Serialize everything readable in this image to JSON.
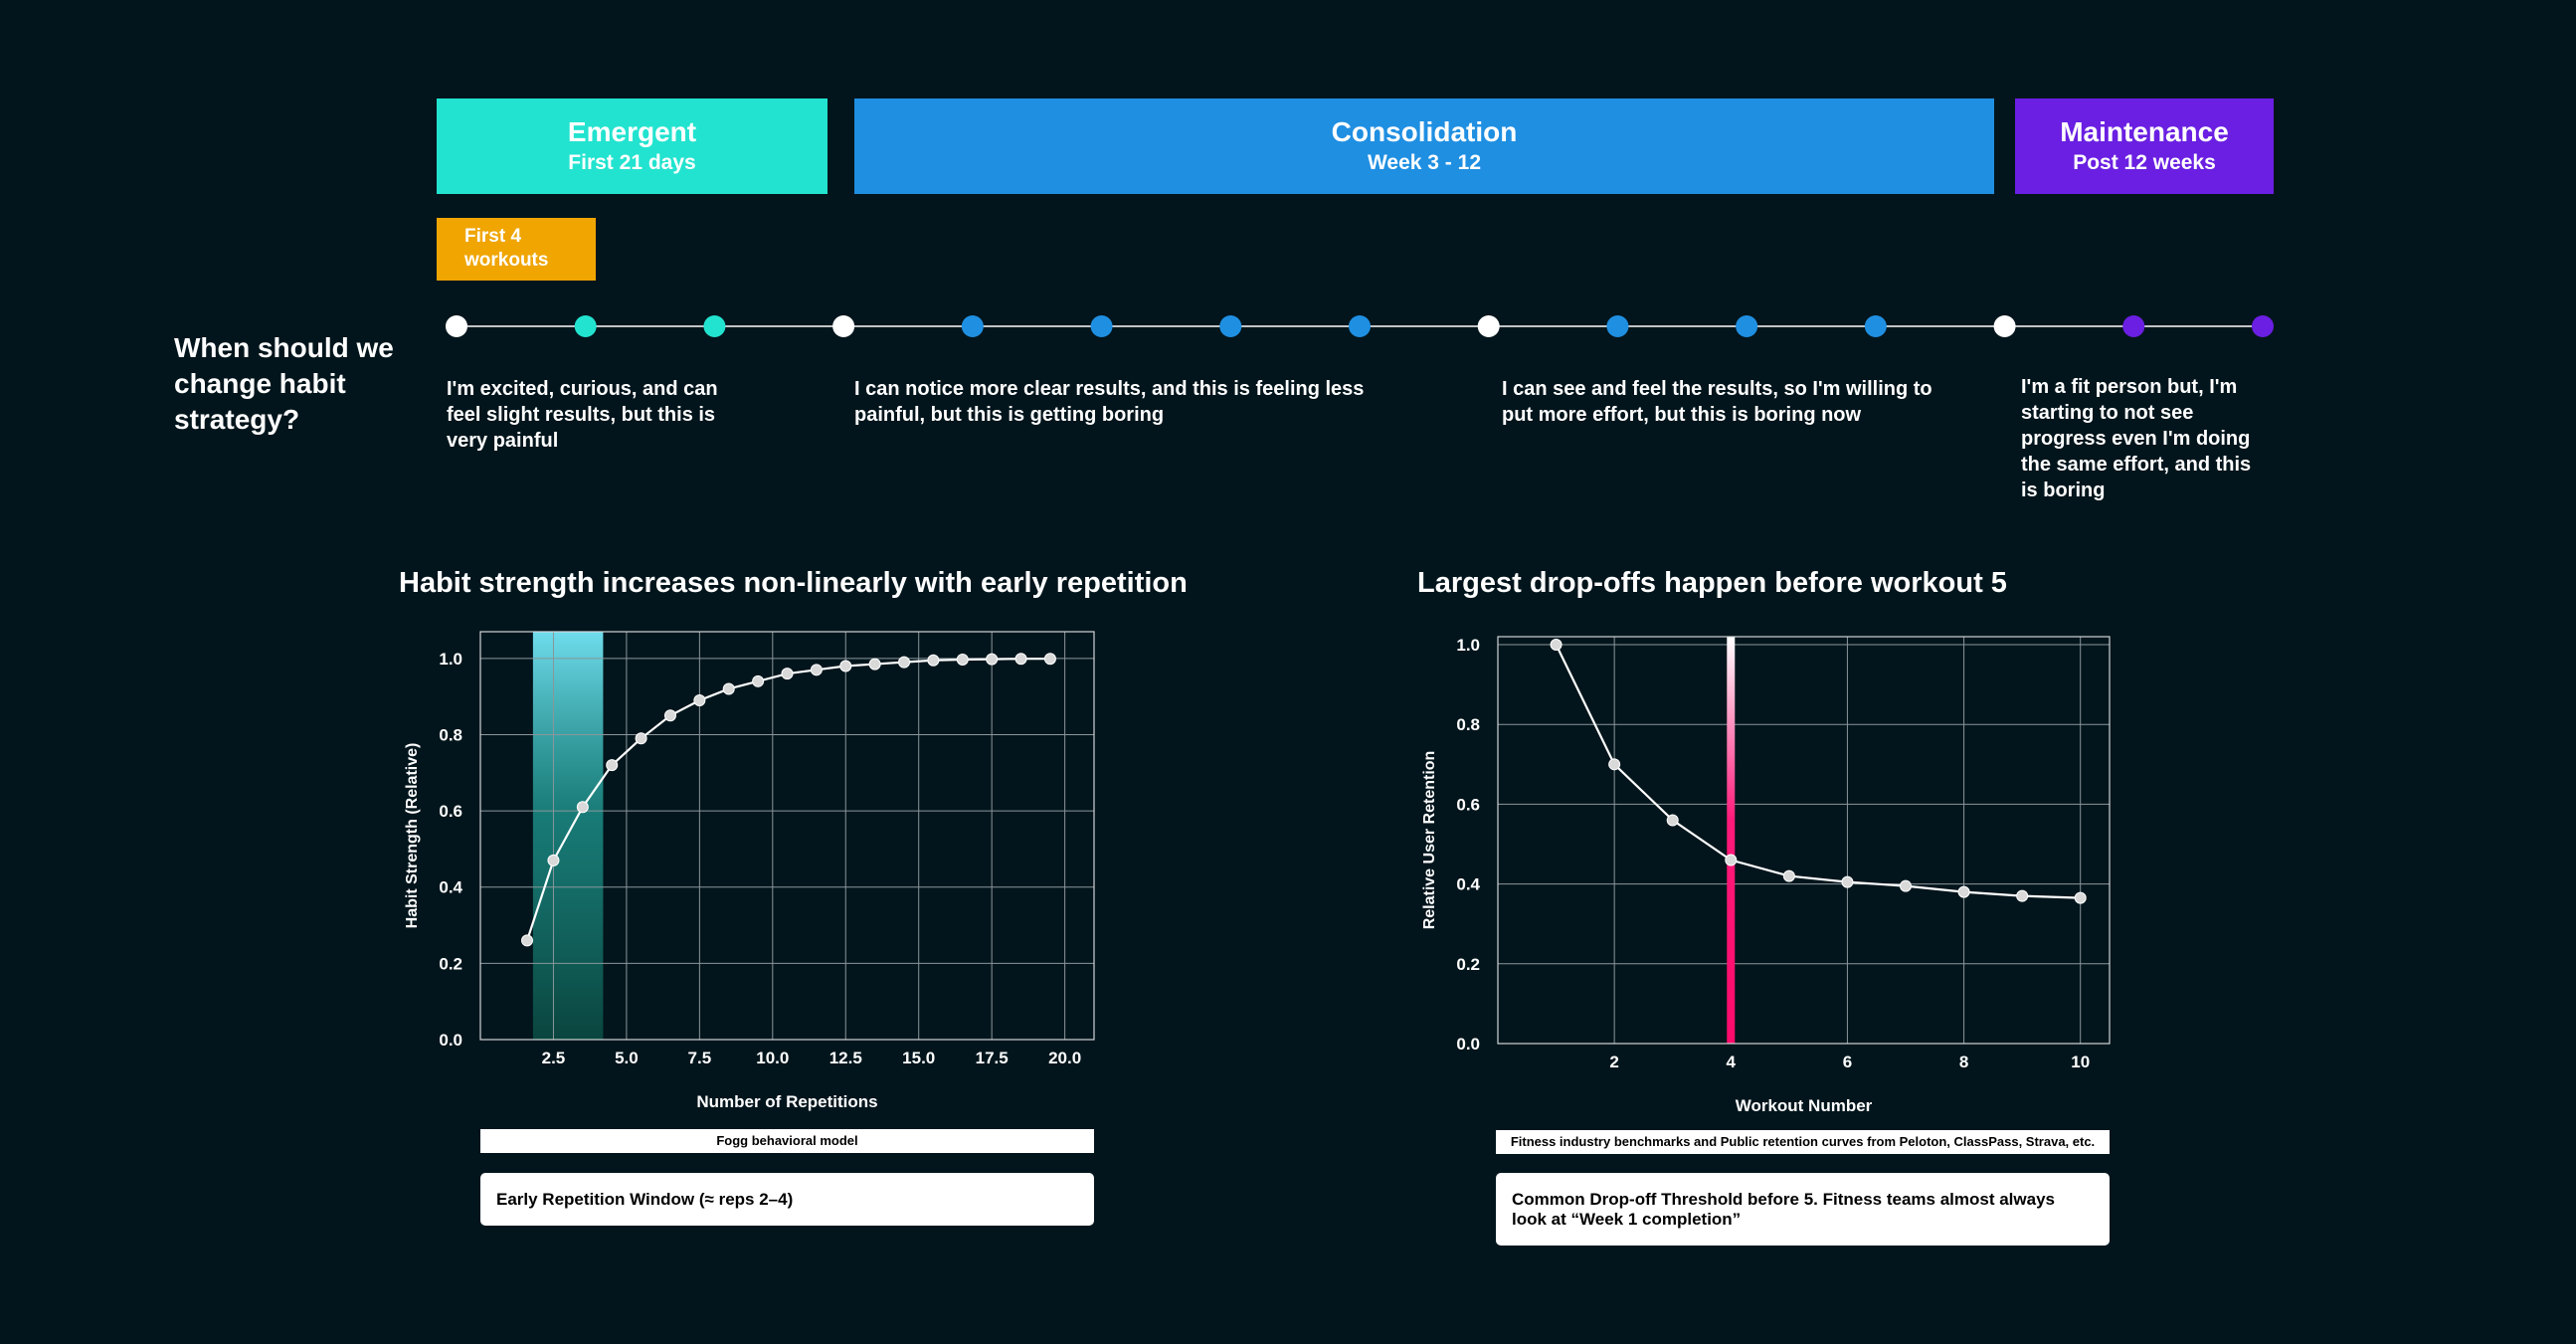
{
  "phases": [
    {
      "name": "Emergent",
      "subtitle": "First 21 days",
      "color": "#22e3cf"
    },
    {
      "name": "Consolidation",
      "subtitle": "Week 3 - 12",
      "color": "#1f8fe2"
    },
    {
      "name": "Maintenance",
      "subtitle": "Post 12 weeks",
      "color": "#6a1fe2"
    }
  ],
  "first_tag": {
    "label": "First 4 workouts",
    "color": "#f0a500"
  },
  "question": "When should we change habit strategy?",
  "timeline_dots": [
    "white",
    "teal",
    "teal",
    "white",
    "blue",
    "blue",
    "blue",
    "blue",
    "white",
    "blue",
    "blue",
    "blue",
    "white",
    "purple",
    "purple"
  ],
  "dot_colors": {
    "white": "#ffffff",
    "teal": "#22e3cf",
    "blue": "#1f8fe2",
    "purple": "#6a1fe2"
  },
  "descriptions": [
    "I'm excited, curious, and can feel slight results, but this is very painful",
    "I can notice more clear results, and this is feeling less painful, but this is getting boring",
    "I can see and feel the results, so I'm willing to put more effort, but this is boring now",
    "I'm a fit person but, I'm starting to not see progress even I'm doing the same effort, and this is boring"
  ],
  "chart_data": [
    {
      "type": "line",
      "title": "Habit strength increases non-linearly with early repetition",
      "xlabel": "Number of Repetitions",
      "ylabel": "Habit Strength (Relative)",
      "xlim": [
        0,
        21
      ],
      "ylim": [
        0,
        1.07
      ],
      "xticks": [
        "2.5",
        "5.0",
        "7.5",
        "10.0",
        "12.5",
        "15.0",
        "17.5",
        "20.0"
      ],
      "xtick_values": [
        2.5,
        5,
        7.5,
        10,
        12.5,
        15,
        17.5,
        20
      ],
      "yticks": [
        "0.0",
        "0.2",
        "0.4",
        "0.6",
        "0.8",
        "1.0"
      ],
      "ytick_values": [
        0,
        0.2,
        0.4,
        0.6,
        0.8,
        1.0
      ],
      "x": [
        1.6,
        2.5,
        3.5,
        4.5,
        5.5,
        6.5,
        7.5,
        8.5,
        9.5,
        10.5,
        11.5,
        12.5,
        13.5,
        14.5,
        15.5,
        16.5,
        17.5,
        18.5,
        19.5
      ],
      "y": [
        0.26,
        0.47,
        0.61,
        0.72,
        0.79,
        0.85,
        0.89,
        0.92,
        0.94,
        0.96,
        0.97,
        0.98,
        0.985,
        0.99,
        0.995,
        0.997,
        0.998,
        0.999,
        0.999
      ],
      "highlight": {
        "x_range": [
          1.8,
          4.2
        ],
        "label": "Early Repetition Window (≈ reps 2–4)"
      },
      "source": "Fogg behavioral model",
      "grid": true
    },
    {
      "type": "line",
      "title": "Largest drop-offs happen before workout 5",
      "xlabel": "Workout Number",
      "ylabel": "Relative User Retention",
      "xlim": [
        0,
        10.5
      ],
      "ylim": [
        0,
        1.02
      ],
      "xticks": [
        "2",
        "4",
        "6",
        "8",
        "10"
      ],
      "xtick_values": [
        2,
        4,
        6,
        8,
        10
      ],
      "yticks": [
        "0.0",
        "0.2",
        "0.4",
        "0.6",
        "0.8",
        "1.0"
      ],
      "ytick_values": [
        0,
        0.2,
        0.4,
        0.6,
        0.8,
        1.0
      ],
      "x": [
        1,
        2,
        3,
        4,
        5,
        6,
        7,
        8,
        9,
        10
      ],
      "y": [
        1.0,
        0.7,
        0.56,
        0.46,
        0.42,
        0.405,
        0.395,
        0.38,
        0.37,
        0.365
      ],
      "threshold": {
        "x": 4,
        "label": "Common Drop-off Threshold before 5. Fitness teams almost always look at “Week 1 completion”"
      },
      "source": "Fitness industry benchmarks and Public retention curves from Peloton, ClassPass, Strava, etc.",
      "grid": true
    }
  ]
}
